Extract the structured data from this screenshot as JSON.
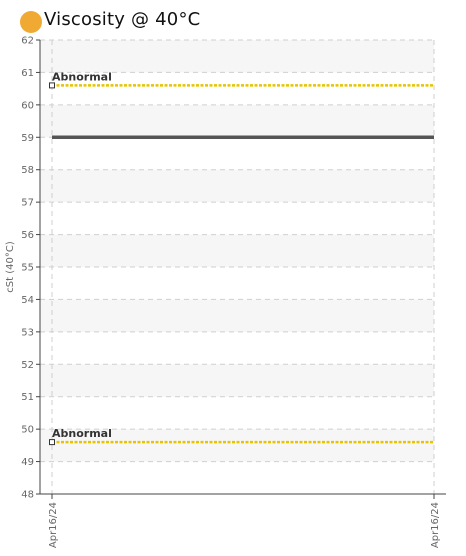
{
  "header": {
    "title": "Viscosity @ 40°C",
    "status_color": "#f0a932"
  },
  "chart_data": {
    "type": "line",
    "title": "Viscosity @ 40°C",
    "xlabel": "",
    "ylabel": "cSt (40°C)",
    "ylim": [
      48,
      62
    ],
    "yticks": [
      48,
      49,
      50,
      51,
      52,
      53,
      54,
      55,
      56,
      57,
      58,
      59,
      60,
      61,
      62
    ],
    "xticks": [
      "Apr16/24",
      "Apr16/24"
    ],
    "grid": true,
    "series": [
      {
        "x": [
          "Apr16/24",
          "Apr16/24"
        ],
        "values": [
          59,
          59
        ],
        "color": "#555555"
      }
    ],
    "thresholds": [
      {
        "label": "Abnormal",
        "value": 60.6,
        "color": "#e8c400"
      },
      {
        "label": "Abnormal",
        "value": 49.6,
        "color": "#e8c400"
      }
    ]
  }
}
